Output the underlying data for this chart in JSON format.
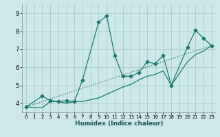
{
  "xlabel": "Humidex (Indice chaleur)",
  "bg_color": "#cce8e8",
  "line_color": "#1a7a6e",
  "grid_color": "#aacccc",
  "xlim": [
    -0.5,
    23.5
  ],
  "ylim": [
    3.5,
    9.5
  ],
  "xticks": [
    0,
    1,
    2,
    3,
    4,
    5,
    6,
    7,
    8,
    9,
    10,
    11,
    12,
    13,
    14,
    15,
    16,
    17,
    18,
    19,
    20,
    21,
    22,
    23
  ],
  "yticks": [
    4,
    5,
    6,
    7,
    8,
    9
  ],
  "series1_x": [
    0,
    2,
    3,
    4,
    5,
    6,
    7,
    9,
    10,
    11,
    12,
    13,
    14,
    15,
    16,
    17,
    18,
    20,
    21,
    22,
    23
  ],
  "series1_y": [
    3.8,
    4.4,
    4.15,
    4.1,
    4.15,
    4.1,
    5.3,
    8.5,
    8.85,
    6.65,
    5.5,
    5.5,
    5.7,
    6.3,
    6.2,
    6.65,
    5.0,
    7.1,
    8.05,
    7.6,
    7.2
  ],
  "series2_x": [
    0,
    2,
    3,
    4,
    5,
    6,
    7,
    9,
    10,
    11,
    12,
    13,
    14,
    15,
    16,
    17,
    18,
    20,
    21,
    22,
    23
  ],
  "series2_y": [
    3.8,
    3.75,
    4.1,
    4.1,
    4.0,
    4.1,
    4.1,
    4.3,
    4.5,
    4.7,
    4.9,
    5.05,
    5.3,
    5.5,
    5.6,
    5.8,
    5.0,
    6.3,
    6.7,
    6.9,
    7.2
  ],
  "series3_x": [
    0,
    23
  ],
  "series3_y": [
    3.8,
    7.2
  ]
}
